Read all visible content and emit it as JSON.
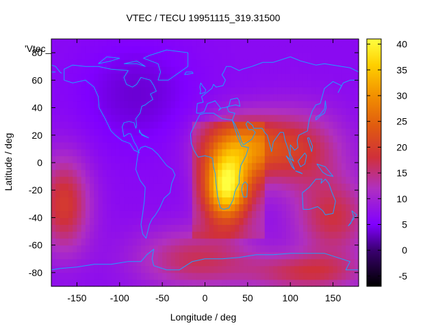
{
  "chart_data": {
    "type": "heatmap",
    "title": "VTEC / TECU 19951115_319.31500",
    "xlabel": "Longitude / deg",
    "ylabel": "Latitude / deg",
    "series_label": "'Vtec_",
    "xlim": [
      -180,
      180
    ],
    "ylim": [
      -90,
      90
    ],
    "x_ticks": [
      -150,
      -100,
      -50,
      0,
      50,
      100,
      150
    ],
    "y_ticks": [
      -80,
      -60,
      -40,
      -20,
      0,
      20,
      40,
      60,
      80
    ],
    "colorbar": {
      "range": [
        -7,
        41
      ],
      "ticks": [
        -5,
        0,
        5,
        10,
        15,
        20,
        25,
        30,
        35,
        40
      ],
      "stops": [
        {
          "v": -7,
          "color": "#000000"
        },
        {
          "v": 0,
          "color": "#3a0070"
        },
        {
          "v": 5,
          "color": "#8000ff"
        },
        {
          "v": 12,
          "color": "#b030c0"
        },
        {
          "v": 18,
          "color": "#d0303a"
        },
        {
          "v": 24,
          "color": "#e05a10"
        },
        {
          "v": 30,
          "color": "#f29000"
        },
        {
          "v": 36,
          "color": "#ffd000"
        },
        {
          "v": 41,
          "color": "#ffff40"
        }
      ]
    },
    "coastline_color": "#1ea0ff",
    "grid": false,
    "legend": "top-left"
  }
}
